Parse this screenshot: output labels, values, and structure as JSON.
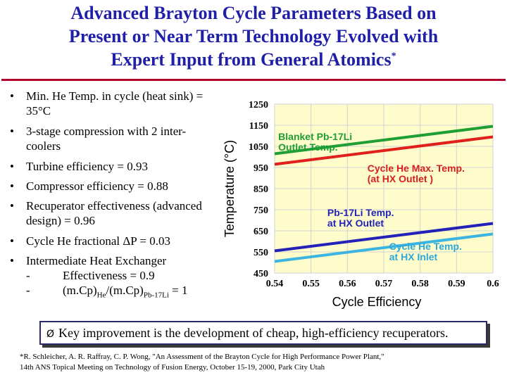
{
  "title": {
    "line1": "Advanced Brayton Cycle Parameters Based on",
    "line2": "Present or Near Term Technology Evolved with",
    "line3": "Expert Input from General Atomics",
    "marker": "*"
  },
  "bullets": {
    "b1": "Min. He Temp. in cycle (heat sink) = 35°C",
    "b2": "3-stage compression with 2 inter-coolers",
    "b3": "Turbine efficiency = 0.93",
    "b4": "Compressor efficiency = 0.88",
    "b5": "Recuperator effectiveness (advanced design) = 0.96",
    "b6": "Cycle He fractional ΔP = 0.03",
    "b7": "Intermediate Heat Exchanger",
    "sub1": "Effectiveness = 0.9",
    "sub2_a": "(m.Cp)",
    "sub2_b": "He",
    "sub2_c": "/(m.Cp)",
    "sub2_d": "Pb-17Li",
    "sub2_e": " = 1"
  },
  "callout": {
    "arrow": "Ø",
    "text": "Key improvement is the development of cheap, high-efficiency recuperators."
  },
  "footnote": {
    "line1": "*R. Schleicher, A. R. Raffray, C. P. Wong, \"An Assessment of the Brayton Cycle for High Performance Power Plant,\"",
    "line2": "14th ANS Topical Meeting on Technology of Fusion Energy, October 15-19, 2000, Park City Utah"
  },
  "chart_data": {
    "type": "line",
    "title": "",
    "xlabel": "Cycle Efficiency",
    "ylabel": "Temperature (°C)",
    "xlim": [
      0.54,
      0.6
    ],
    "ylim": [
      450,
      1250
    ],
    "xticks": [
      "0.54",
      "0.55",
      "0.56",
      "0.57",
      "0.58",
      "0.59",
      "0.6"
    ],
    "yticks": [
      "1250",
      "1150",
      "1050",
      "950",
      "850",
      "750",
      "650",
      "550",
      "450"
    ],
    "grid": true,
    "background": "#fffccc",
    "series": [
      {
        "name": "Blanket Pb-17Li Outlet Temp.",
        "color": "#1f9e34",
        "x": [
          0.54,
          0.6
        ],
        "y": [
          1015,
          1145
        ],
        "label_lines": [
          "Blanket Pb-17Li",
          "Outlet Temp."
        ],
        "label_color": "#1f9e34",
        "label_at": [
          0.541,
          1080
        ]
      },
      {
        "name": "Cycle He Max. Temp. (at HX Outlet )",
        "color": "#e0201c",
        "x": [
          0.54,
          0.6
        ],
        "y": [
          965,
          1095
        ],
        "label_lines": [
          "Cycle He Max. Temp.",
          "(at HX Outlet )"
        ],
        "label_color": "#d42020",
        "label_at": [
          0.5655,
          930
        ]
      },
      {
        "name": "Pb-17Li Temp. at HX Outlet",
        "color": "#2222b8",
        "x": [
          0.54,
          0.6
        ],
        "y": [
          555,
          685
        ],
        "label_lines": [
          "Pb-17Li Temp.",
          "at HX Outlet"
        ],
        "label_color": "#2222b8",
        "label_at": [
          0.5545,
          720
        ]
      },
      {
        "name": "Cycle He Temp. at HX Inlet",
        "color": "#3eb5e0",
        "x": [
          0.54,
          0.6
        ],
        "y": [
          505,
          635
        ],
        "label_lines": [
          "Cycle He Temp.",
          "at HX Inlet"
        ],
        "label_color": "#2ea8d8",
        "label_at": [
          0.5715,
          560
        ]
      }
    ]
  }
}
